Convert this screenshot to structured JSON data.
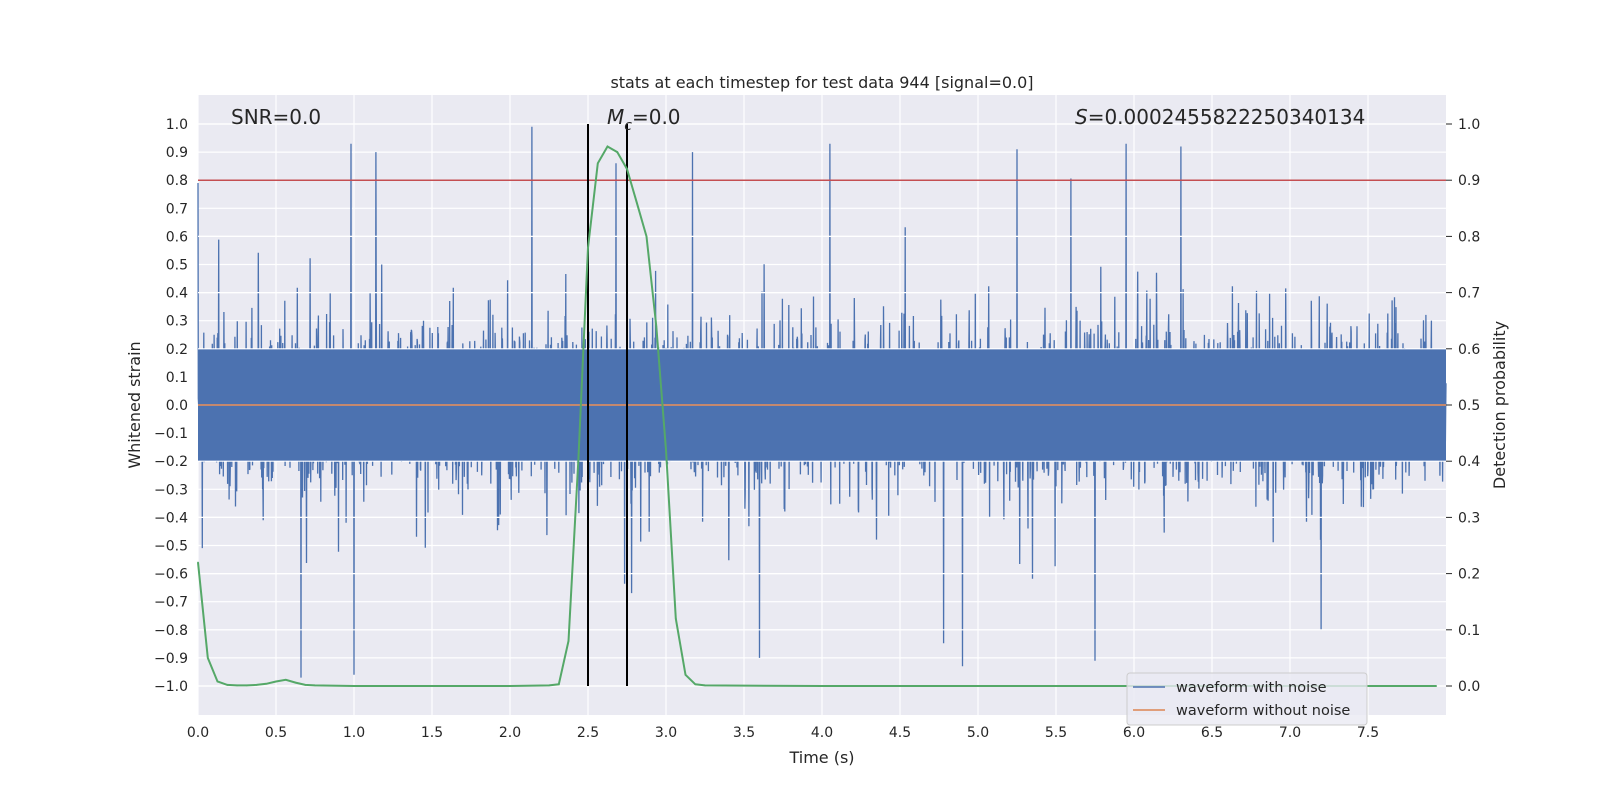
{
  "chart_data": {
    "type": "line",
    "title": "stats at each timestep for test data 944 [signal=0.0]",
    "xlabel": "Time (s)",
    "ylabel": "Whitened strain",
    "y2label": "Detection probability",
    "xlim": [
      0.0,
      8.0
    ],
    "ylim": [
      -1.1,
      1.1
    ],
    "y2lim": [
      -0.05,
      1.05
    ],
    "x_ticks": [
      0.0,
      0.5,
      1.0,
      1.5,
      2.0,
      2.5,
      3.0,
      3.5,
      4.0,
      4.5,
      5.0,
      5.5,
      6.0,
      6.5,
      7.0,
      7.5
    ],
    "x_tick_labels": [
      "0.0",
      "0.5",
      "1.0",
      "1.5",
      "2.0",
      "2.5",
      "3.0",
      "3.5",
      "4.0",
      "4.5",
      "5.0",
      "5.5",
      "6.0",
      "6.5",
      "7.0",
      "7.5"
    ],
    "y_ticks": [
      1.0,
      0.9,
      0.8,
      0.7,
      0.6,
      0.5,
      0.4,
      0.3,
      0.2,
      0.1,
      0.0,
      -0.1,
      -0.2,
      -0.3,
      -0.4,
      -0.5,
      -0.6,
      -0.7,
      -0.8,
      -0.9,
      -1.0
    ],
    "y_tick_labels": [
      "1.0",
      "0.9",
      "0.8",
      "0.7",
      "0.6",
      "0.5",
      "0.4",
      "0.3",
      "0.2",
      "0.1",
      "0.0",
      "−0.1",
      "−0.2",
      "−0.3",
      "−0.4",
      "−0.5",
      "−0.6",
      "−0.7",
      "−0.8",
      "−0.9",
      "−1.0"
    ],
    "y2_ticks": [
      1.0,
      0.9,
      0.8,
      0.7,
      0.6,
      0.5,
      0.4,
      0.3,
      0.2,
      0.1,
      0.0
    ],
    "y2_tick_labels": [
      "1.0",
      "0.9",
      "0.8",
      "0.7",
      "0.6",
      "0.5",
      "0.4",
      "0.3",
      "0.2",
      "0.1",
      "0.0"
    ],
    "annotations": {
      "snr": "SNR=0.0",
      "mc_symbol": "M",
      "mc_subscript": "c",
      "mc_value": "=0.0",
      "s_symbol": "S",
      "s_value": "=0.0002455822250340134"
    },
    "threshold": {
      "axis": "y2",
      "value": 0.9,
      "color": "#c44e52"
    },
    "zero_line": {
      "axis": "y",
      "value": 0.0,
      "color": "#dd8452"
    },
    "vlines": [
      {
        "x": 2.5,
        "y": [
          -1.0,
          1.0
        ],
        "color": "#000000"
      },
      {
        "x": 2.75,
        "y": [
          -1.0,
          1.0
        ],
        "color": "#000000"
      }
    ],
    "series": [
      {
        "name": "waveform with noise",
        "color": "#4c72b0",
        "axis": "y",
        "sample_rate": 2048,
        "duration": 8.0,
        "core_range": [
          -0.2,
          0.2
        ],
        "envelope_range": [
          -0.98,
          0.99
        ],
        "peaks": [
          {
            "x": 0.0,
            "y": 0.79
          },
          {
            "x": 0.98,
            "y": 0.93
          },
          {
            "x": 1.14,
            "y": 0.9
          },
          {
            "x": 2.14,
            "y": 1.0
          },
          {
            "x": 2.68,
            "y": 0.86
          },
          {
            "x": 3.17,
            "y": 0.9
          },
          {
            "x": 4.05,
            "y": 0.93
          },
          {
            "x": 5.25,
            "y": 0.91
          },
          {
            "x": 5.95,
            "y": 0.93
          },
          {
            "x": 6.3,
            "y": 0.92
          },
          {
            "x": 0.66,
            "y": -0.97
          },
          {
            "x": 1.0,
            "y": -0.96
          },
          {
            "x": 3.6,
            "y": -0.9
          },
          {
            "x": 4.9,
            "y": -0.93
          },
          {
            "x": 5.75,
            "y": -0.91
          },
          {
            "x": 7.2,
            "y": -0.8
          }
        ]
      },
      {
        "name": "waveform without noise",
        "color": "#dd8452",
        "axis": "y",
        "x": [
          0.0,
          8.0
        ],
        "y": [
          0.0,
          0.0
        ]
      },
      {
        "name": "detection probability",
        "color": "#55a868",
        "axis": "y2",
        "x": [
          0.0,
          0.0625,
          0.125,
          0.1875,
          0.25,
          0.3125,
          0.375,
          0.4375,
          0.5,
          0.5625,
          0.625,
          0.6875,
          0.75,
          1.0,
          1.5,
          2.0,
          2.25,
          2.3125,
          2.375,
          2.4375,
          2.5,
          2.5625,
          2.625,
          2.6875,
          2.75,
          2.8125,
          2.875,
          2.9375,
          3.0,
          3.0625,
          3.125,
          3.1875,
          3.25,
          4.0,
          5.0,
          6.0,
          7.0,
          7.9375
        ],
        "y": [
          0.22,
          0.05,
          0.008,
          0.002,
          0.001,
          0.001,
          0.002,
          0.004,
          0.008,
          0.011,
          0.006,
          0.002,
          0.001,
          0.0,
          0.0,
          0.0,
          0.001,
          0.003,
          0.08,
          0.4,
          0.78,
          0.93,
          0.96,
          0.95,
          0.92,
          0.86,
          0.8,
          0.64,
          0.42,
          0.12,
          0.02,
          0.003,
          0.001,
          0.0,
          0.0,
          0.0,
          0.0,
          0.0
        ]
      }
    ],
    "legend": {
      "position": "lower-right",
      "entries": [
        {
          "label": "waveform with noise",
          "color": "#4c72b0"
        },
        {
          "label": "waveform without noise",
          "color": "#dd8452"
        }
      ]
    }
  }
}
